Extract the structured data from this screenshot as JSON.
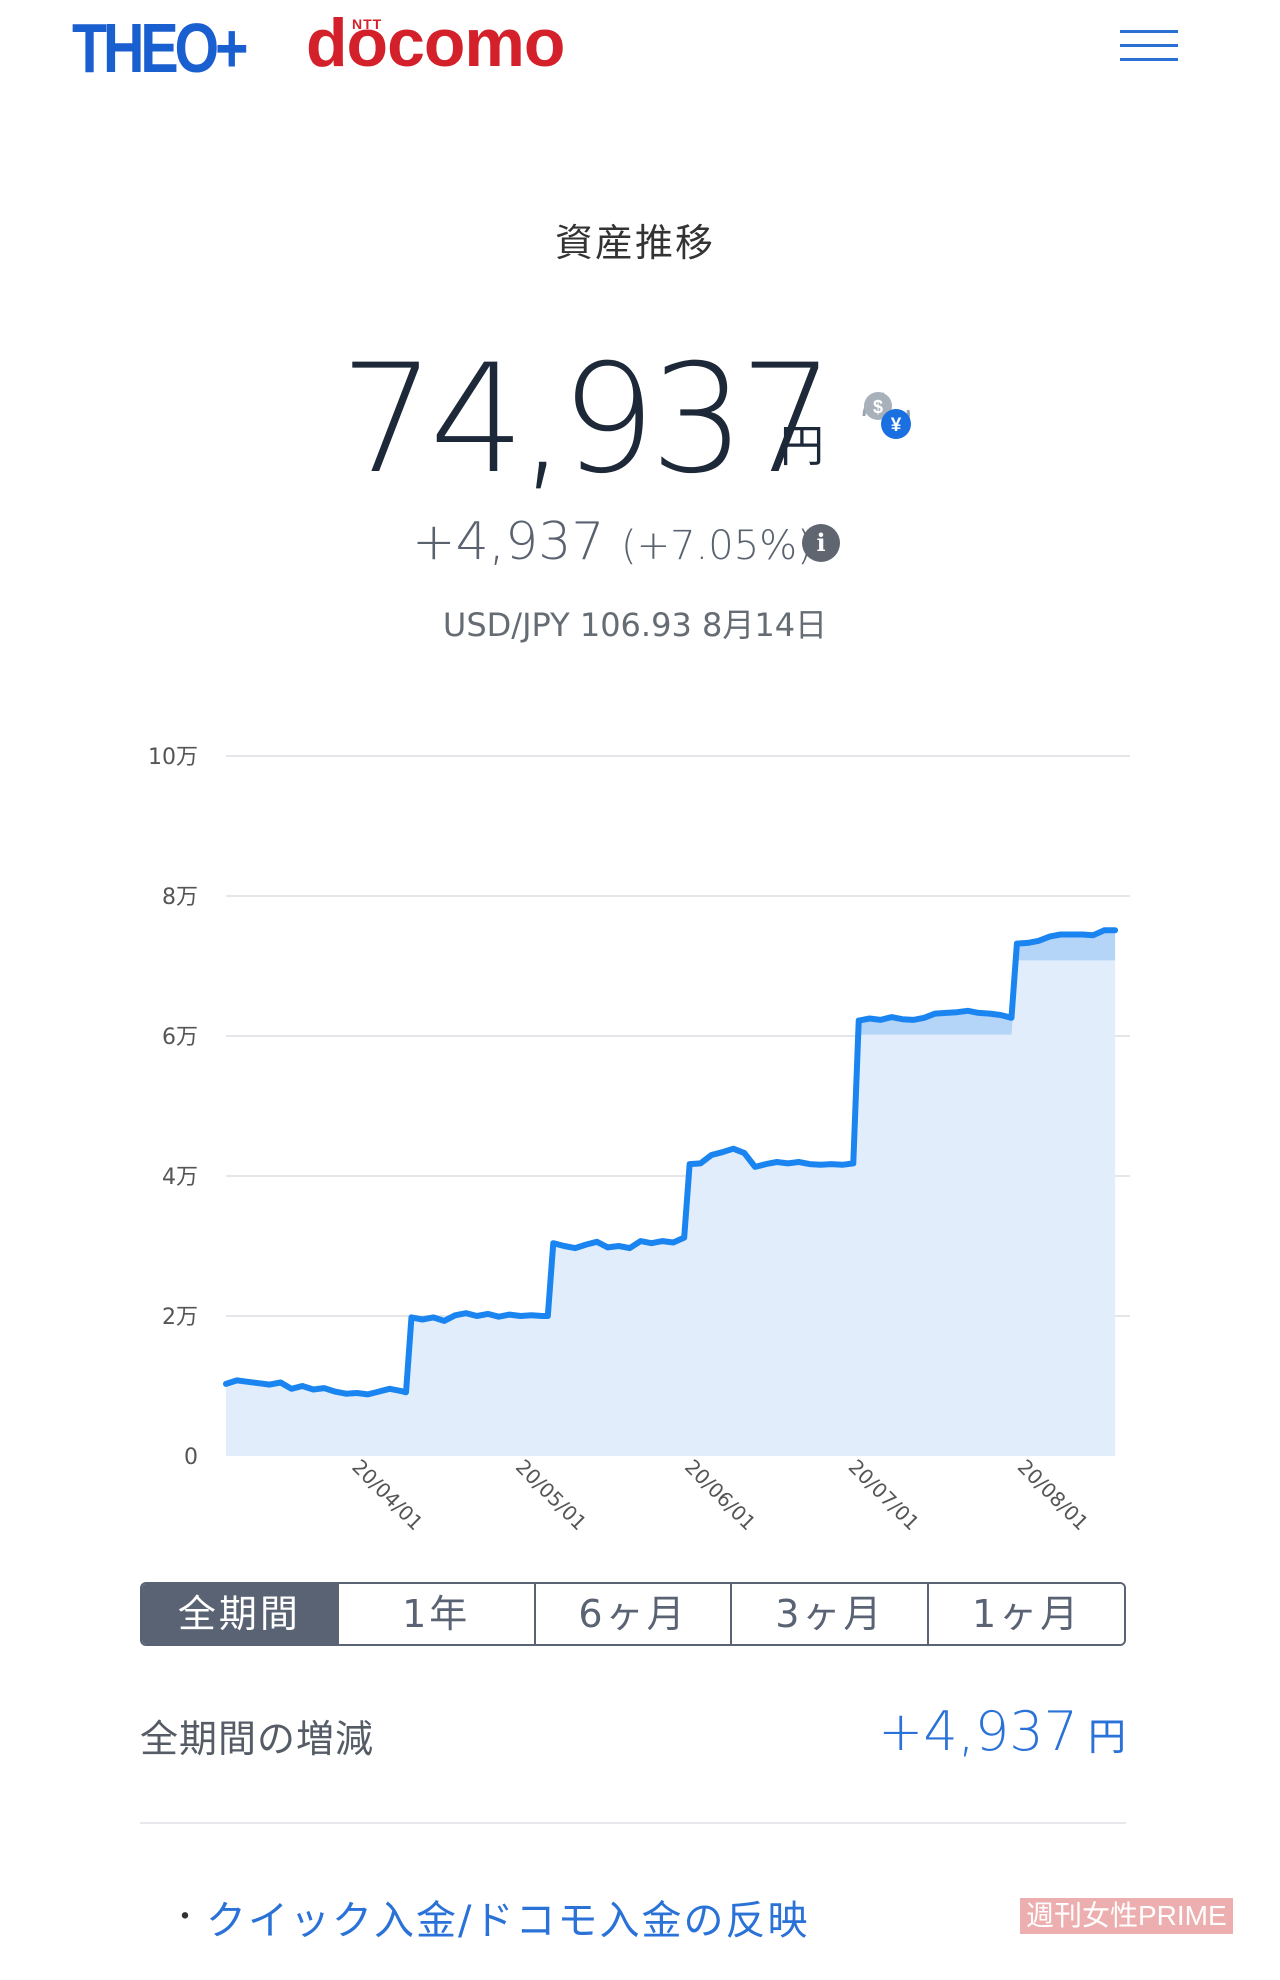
{
  "header": {
    "logo_theo": "THEO+",
    "logo_ntt": "NTT",
    "logo_docomo": "docomo"
  },
  "summary": {
    "title": "資産推移",
    "total_value": "74,937",
    "total_unit": "円",
    "change_value": "+4,937",
    "change_percent": "(+7.05%)",
    "exchange_rate": "USD/JPY 106.93 8月14日"
  },
  "chart_data": {
    "type": "area",
    "title": "",
    "xlabel": "",
    "ylabel": "",
    "ylim": [
      0,
      100000
    ],
    "y_ticks": [
      0,
      20000,
      40000,
      60000,
      80000,
      100000
    ],
    "y_tick_labels": [
      "0",
      "2万",
      "4万",
      "6万",
      "8万",
      "10万"
    ],
    "x_tick_labels": [
      "20/04/01",
      "20/05/01",
      "20/06/01",
      "20/07/01",
      "20/08/01"
    ],
    "x_tick_days": [
      24,
      54,
      85,
      115,
      146
    ],
    "x_range_days": [
      0,
      165
    ],
    "series": [
      {
        "name": "",
        "color": "#1a85f0",
        "points": [
          [
            0,
            10300
          ],
          [
            2,
            10800
          ],
          [
            4,
            10600
          ],
          [
            6,
            10400
          ],
          [
            8,
            10200
          ],
          [
            10,
            10500
          ],
          [
            12,
            9600
          ],
          [
            14,
            10000
          ],
          [
            16,
            9500
          ],
          [
            18,
            9700
          ],
          [
            20,
            9200
          ],
          [
            22,
            8900
          ],
          [
            24,
            9000
          ],
          [
            26,
            8800
          ],
          [
            28,
            9200
          ],
          [
            30,
            9600
          ],
          [
            32,
            9300
          ],
          [
            33,
            9100
          ],
          [
            34,
            19800
          ],
          [
            36,
            19500
          ],
          [
            38,
            19800
          ],
          [
            40,
            19300
          ],
          [
            42,
            20100
          ],
          [
            44,
            20400
          ],
          [
            46,
            20000
          ],
          [
            48,
            20300
          ],
          [
            50,
            19900
          ],
          [
            52,
            20200
          ],
          [
            54,
            20000
          ],
          [
            56,
            20100
          ],
          [
            58,
            20000
          ],
          [
            59,
            20000
          ],
          [
            60,
            30400
          ],
          [
            62,
            30000
          ],
          [
            64,
            29700
          ],
          [
            66,
            30200
          ],
          [
            68,
            30600
          ],
          [
            70,
            29800
          ],
          [
            72,
            30000
          ],
          [
            74,
            29700
          ],
          [
            76,
            30700
          ],
          [
            78,
            30400
          ],
          [
            80,
            30700
          ],
          [
            82,
            30500
          ],
          [
            84,
            31200
          ],
          [
            85,
            41700
          ],
          [
            87,
            41800
          ],
          [
            89,
            43000
          ],
          [
            91,
            43400
          ],
          [
            93,
            43900
          ],
          [
            95,
            43300
          ],
          [
            97,
            41300
          ],
          [
            99,
            41700
          ],
          [
            101,
            42000
          ],
          [
            103,
            41800
          ],
          [
            105,
            42000
          ],
          [
            107,
            41700
          ],
          [
            109,
            41600
          ],
          [
            111,
            41700
          ],
          [
            113,
            41600
          ],
          [
            115,
            41800
          ],
          [
            116,
            62200
          ],
          [
            118,
            62500
          ],
          [
            120,
            62300
          ],
          [
            122,
            62700
          ],
          [
            124,
            62400
          ],
          [
            126,
            62300
          ],
          [
            128,
            62600
          ],
          [
            130,
            63200
          ],
          [
            132,
            63300
          ],
          [
            134,
            63400
          ],
          [
            136,
            63600
          ],
          [
            138,
            63300
          ],
          [
            140,
            63200
          ],
          [
            142,
            63000
          ],
          [
            144,
            62600
          ],
          [
            145,
            73200
          ],
          [
            147,
            73300
          ],
          [
            149,
            73600
          ],
          [
            151,
            74200
          ],
          [
            153,
            74500
          ],
          [
            155,
            74500
          ],
          [
            157,
            74500
          ],
          [
            159,
            74400
          ],
          [
            161,
            75100
          ],
          [
            163,
            75100
          ]
        ],
        "band_lower": [
          [
            116,
            60200
          ],
          [
            144,
            60200
          ],
          [
            145,
            70800
          ],
          [
            163,
            70800
          ]
        ]
      }
    ]
  },
  "period_tabs": [
    {
      "label": "全期間",
      "active": true
    },
    {
      "label": "1年",
      "active": false
    },
    {
      "label": "6ヶ月",
      "active": false
    },
    {
      "label": "3ヶ月",
      "active": false
    },
    {
      "label": "1ヶ月",
      "active": false
    }
  ],
  "period_summary": {
    "label": "全期間の増減",
    "value": "+4,937",
    "unit": "円"
  },
  "links": {
    "quick_deposit": "クイック入金/ドコモ入金の反映"
  },
  "watermark": "週刊女性PRIME"
}
